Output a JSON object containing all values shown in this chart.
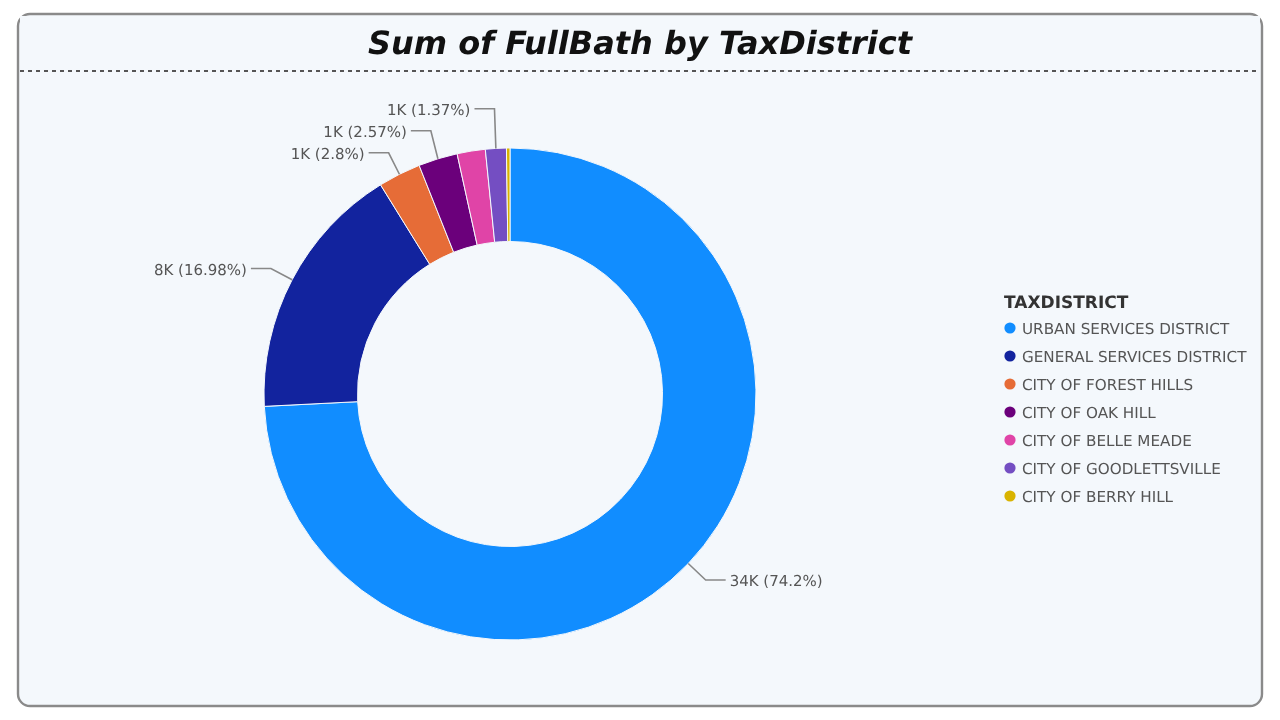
{
  "chart_data": {
    "type": "donut",
    "title": "Sum of FullBath by TaxDistrict",
    "legend_title": "TAXDISTRICT",
    "legend": "right",
    "categories": [
      "URBAN SERVICES DISTRICT",
      "GENERAL SERVICES DISTRICT",
      "CITY OF FOREST HILLS",
      "CITY OF OAK HILL",
      "CITY OF BELLE MEADE",
      "CITY OF GOODLETTSVILLE",
      "CITY OF BERRY HILL"
    ],
    "values": [
      74.2,
      16.98,
      2.8,
      2.57,
      1.85,
      1.37,
      0.23
    ],
    "value_labels": [
      "34K (74.2%)",
      "8K (16.98%)",
      "1K (2.8%)",
      "1K (2.57%)",
      null,
      "1K (1.37%)",
      null
    ],
    "colors": [
      "#118dff",
      "#12239e",
      "#e66c37",
      "#6b007b",
      "#e044a7",
      "#744ec2",
      "#d9b300"
    ]
  }
}
